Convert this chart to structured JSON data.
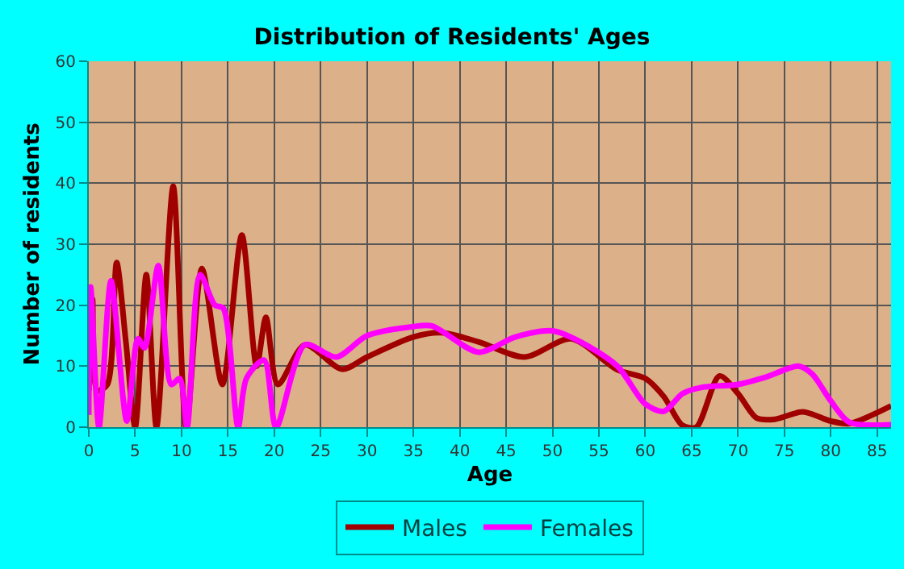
{
  "chart_data": {
    "type": "line",
    "title": "Distribution of Residents' Ages",
    "xlabel": "Age",
    "ylabel": "Number of residents",
    "xlim": [
      0,
      86.5
    ],
    "xticks": [
      0,
      5,
      10,
      15,
      20,
      25,
      30,
      35,
      40,
      45,
      50,
      55,
      60,
      65,
      70,
      75,
      80,
      85
    ],
    "ylim": [
      0,
      60
    ],
    "yticks": [
      0,
      10,
      20,
      30,
      40,
      50,
      60
    ],
    "grid": true,
    "legend": "bottom",
    "marker": "none",
    "line_style": "solid",
    "series": [
      {
        "name": "Males",
        "color": "#a00000",
        "x": [
          0,
          0.4,
          0.9,
          2,
          3,
          4,
          5,
          6.2,
          7.3,
          9.1,
          10.5,
          12.2,
          14.4,
          16.5,
          18.1,
          19.1,
          20.4,
          23.3,
          27.3,
          30,
          35,
          38,
          42,
          47,
          52,
          57,
          60,
          62,
          64,
          65.5,
          68,
          70,
          72,
          74,
          77,
          80,
          82,
          86.5
        ],
        "values": [
          6,
          21,
          6,
          7,
          27,
          14,
          0,
          25,
          0,
          39.5,
          0,
          26,
          7,
          31.5,
          10,
          18,
          7,
          13.5,
          9.5,
          11.5,
          14.8,
          15.5,
          14,
          11.5,
          14.5,
          9.4,
          8,
          5,
          0.3,
          0,
          8.4,
          5.5,
          1.5,
          1.3,
          2.5,
          1,
          0.6,
          3.5
        ]
      },
      {
        "name": "Females",
        "color": "#ff00ff",
        "x": [
          0,
          0.2,
          1.1,
          2.4,
          4.1,
          5.3,
          6,
          7.5,
          8.9,
          9.8,
          10.6,
          12,
          13.6,
          14.5,
          16.1,
          17,
          18.9,
          20.2,
          23.3,
          26.7,
          30,
          35,
          37,
          42,
          46,
          50,
          53,
          57,
          60,
          62,
          64,
          66,
          70,
          73,
          76.5,
          78,
          80,
          82,
          86.5
        ],
        "values": [
          2,
          23,
          0,
          24,
          1,
          14.5,
          13,
          26.5,
          7,
          8,
          0,
          25,
          20,
          19.5,
          0,
          8,
          11,
          0,
          13.5,
          11.5,
          15,
          16.5,
          16.6,
          12.3,
          14.8,
          15.8,
          14,
          10,
          3.8,
          2.6,
          5.5,
          6.5,
          7,
          8.2,
          10,
          8.7,
          4.3,
          0.8,
          0.4
        ]
      }
    ]
  }
}
